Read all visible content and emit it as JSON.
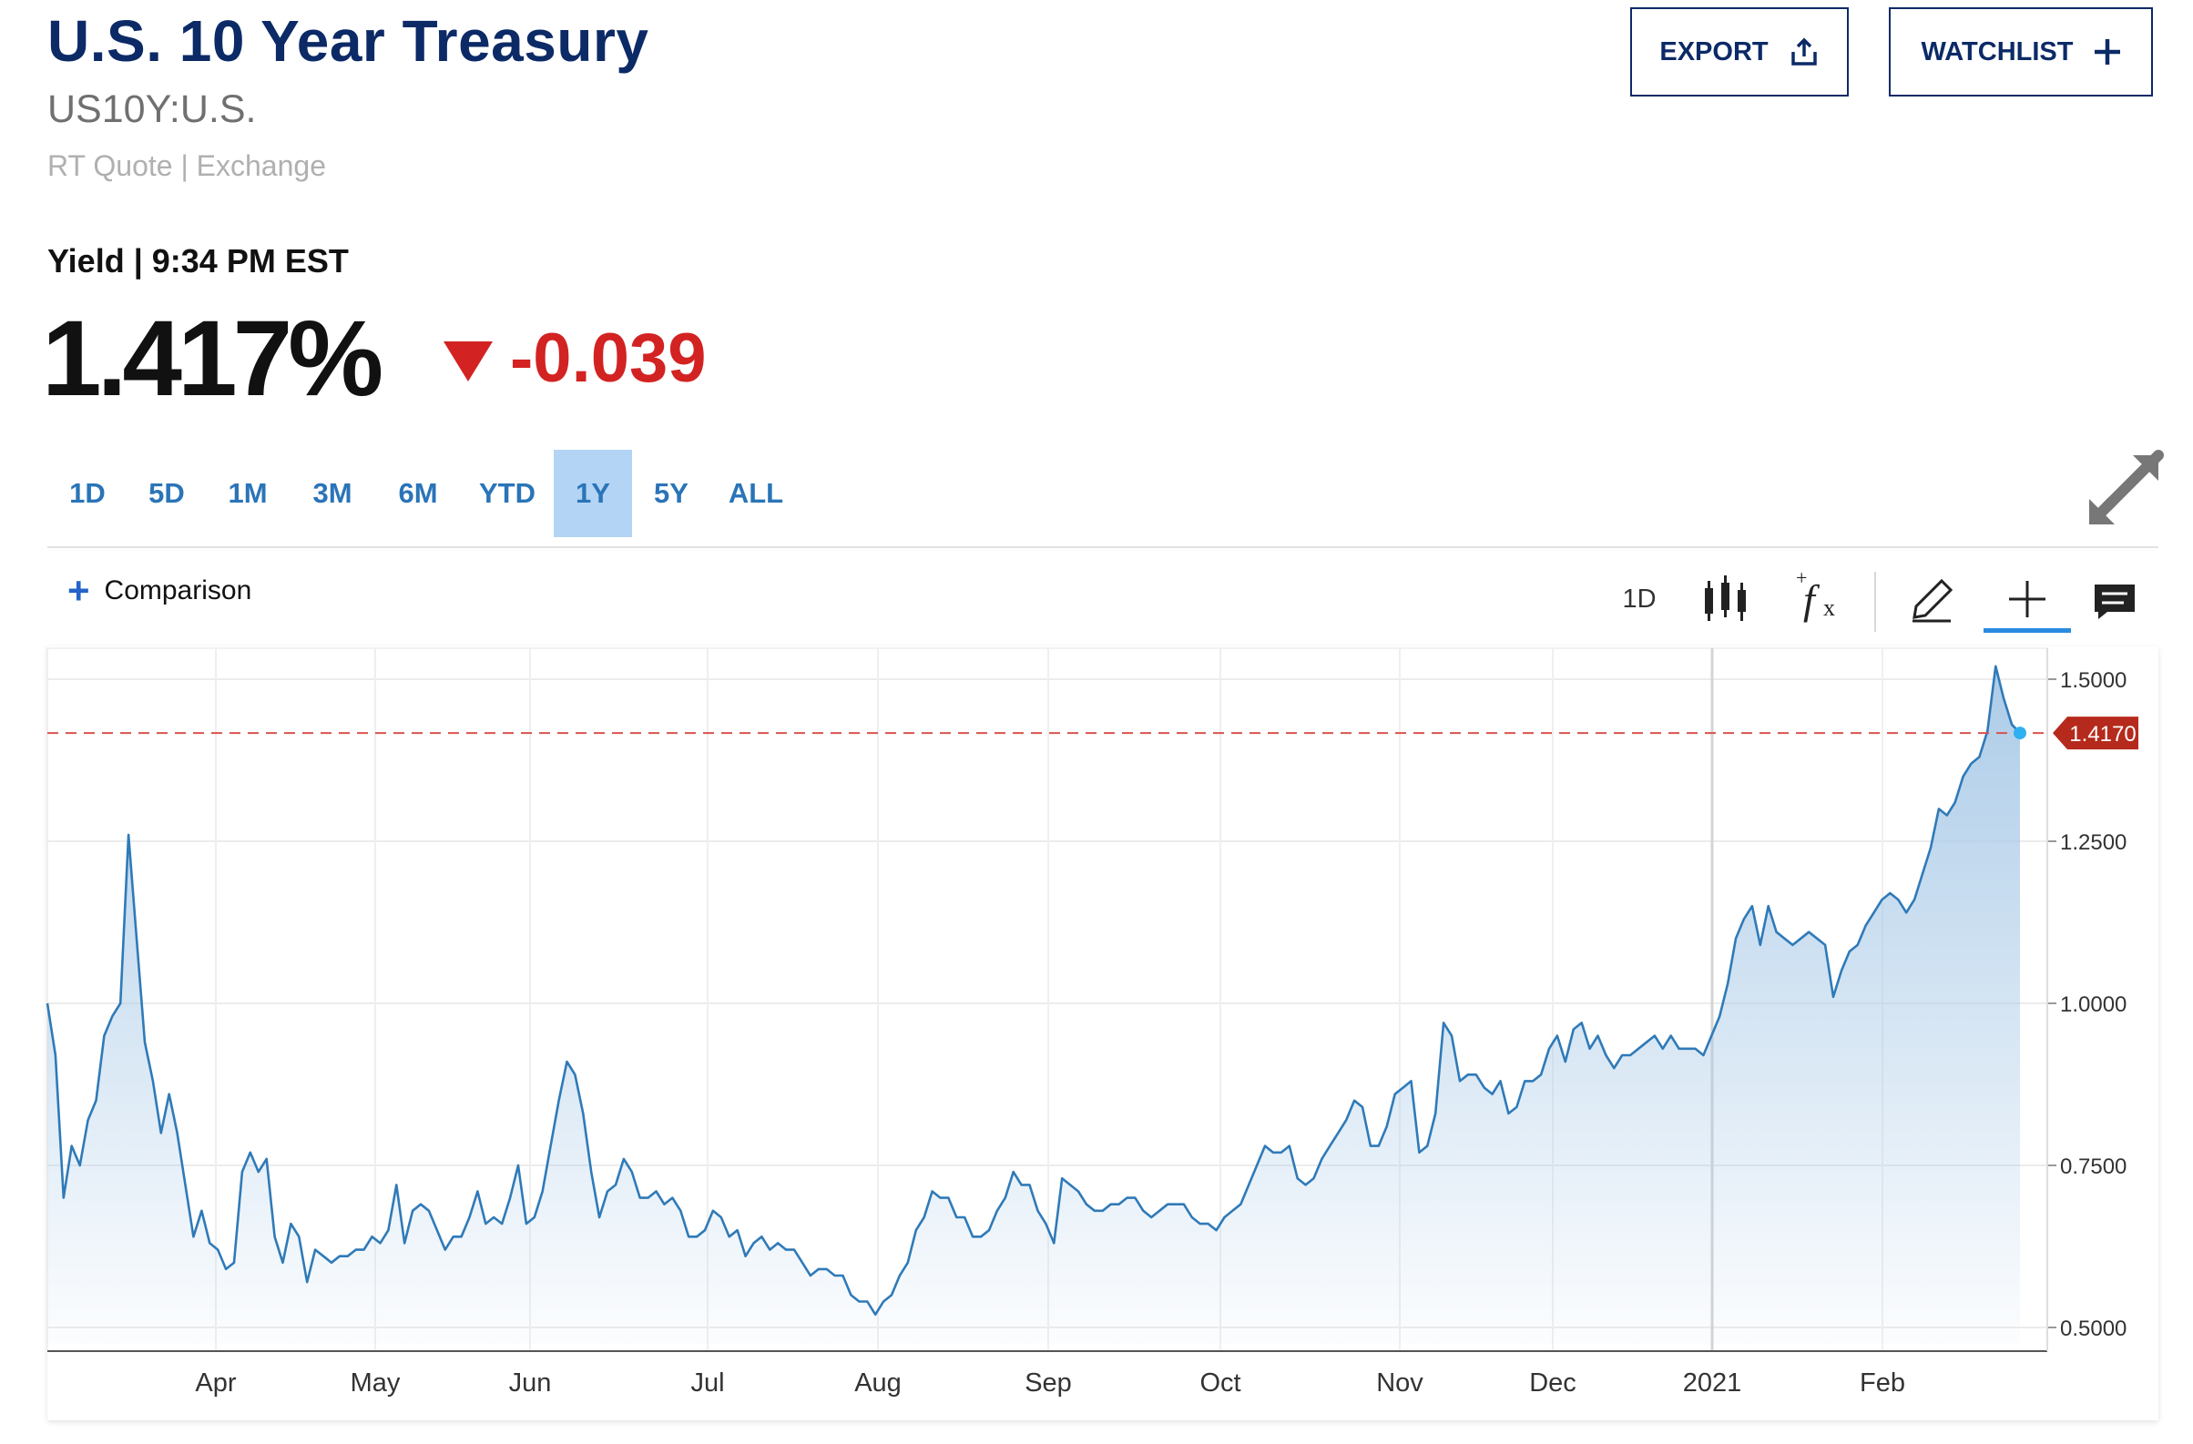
{
  "header": {
    "title": "U.S. 10 Year Treasury",
    "symbol": "US10Y:U.S.",
    "quote_source": "RT Quote | Exchange",
    "export_label": "EXPORT",
    "watchlist_label": "WATCHLIST"
  },
  "quote": {
    "label": "Yield | 9:34 PM EST",
    "price": "1.417%",
    "change": "-0.039",
    "change_color": "#d32222"
  },
  "ranges": {
    "items": [
      "1D",
      "5D",
      "1M",
      "3M",
      "6M",
      "YTD",
      "1Y",
      "5Y",
      "ALL"
    ],
    "active": "1Y"
  },
  "toolbar": {
    "comparison_label": "Comparison",
    "interval_label": "1D",
    "icons": [
      "candlestick-icon",
      "indicator-fx-icon",
      "draw-pencil-icon",
      "crosshair-icon",
      "comment-icon"
    ]
  },
  "chart_data": {
    "type": "area",
    "x_tick_labels": [
      "Apr",
      "May",
      "Jun",
      "Jul",
      "Aug",
      "Sep",
      "Oct",
      "Nov",
      "Dec",
      "2021",
      "Feb"
    ],
    "y_tick_labels": [
      "1.5000",
      "1.2500",
      "1.0000",
      "0.7500",
      "0.5000"
    ],
    "ylim": [
      0.5,
      1.5
    ],
    "current_value": 1.417,
    "current_label": "1.4170",
    "line_color": "#2f7ab8",
    "fill_color": "#a8c9e7",
    "reference_line_color": "#d9534f",
    "grid": true,
    "values": [
      1.0,
      0.92,
      0.7,
      0.78,
      0.75,
      0.82,
      0.85,
      0.95,
      0.98,
      1.0,
      1.26,
      1.1,
      0.94,
      0.88,
      0.8,
      0.86,
      0.8,
      0.72,
      0.64,
      0.68,
      0.63,
      0.62,
      0.59,
      0.6,
      0.74,
      0.77,
      0.74,
      0.76,
      0.64,
      0.6,
      0.66,
      0.64,
      0.57,
      0.62,
      0.61,
      0.6,
      0.61,
      0.61,
      0.62,
      0.62,
      0.64,
      0.63,
      0.65,
      0.72,
      0.63,
      0.68,
      0.69,
      0.68,
      0.65,
      0.62,
      0.64,
      0.64,
      0.67,
      0.71,
      0.66,
      0.67,
      0.66,
      0.7,
      0.75,
      0.66,
      0.67,
      0.71,
      0.78,
      0.85,
      0.91,
      0.89,
      0.83,
      0.74,
      0.67,
      0.71,
      0.72,
      0.76,
      0.74,
      0.7,
      0.7,
      0.71,
      0.69,
      0.7,
      0.68,
      0.64,
      0.64,
      0.65,
      0.68,
      0.67,
      0.64,
      0.65,
      0.61,
      0.63,
      0.64,
      0.62,
      0.63,
      0.62,
      0.62,
      0.6,
      0.58,
      0.59,
      0.59,
      0.58,
      0.58,
      0.55,
      0.54,
      0.54,
      0.52,
      0.54,
      0.55,
      0.58,
      0.6,
      0.65,
      0.67,
      0.71,
      0.7,
      0.7,
      0.67,
      0.67,
      0.64,
      0.64,
      0.65,
      0.68,
      0.7,
      0.74,
      0.72,
      0.72,
      0.68,
      0.66,
      0.63,
      0.73,
      0.72,
      0.71,
      0.69,
      0.68,
      0.68,
      0.69,
      0.69,
      0.7,
      0.7,
      0.68,
      0.67,
      0.68,
      0.69,
      0.69,
      0.69,
      0.67,
      0.66,
      0.66,
      0.65,
      0.67,
      0.68,
      0.69,
      0.72,
      0.75,
      0.78,
      0.77,
      0.77,
      0.78,
      0.73,
      0.72,
      0.73,
      0.76,
      0.78,
      0.8,
      0.82,
      0.85,
      0.84,
      0.78,
      0.78,
      0.81,
      0.86,
      0.87,
      0.88,
      0.77,
      0.78,
      0.83,
      0.97,
      0.95,
      0.88,
      0.89,
      0.89,
      0.87,
      0.86,
      0.88,
      0.83,
      0.84,
      0.88,
      0.88,
      0.89,
      0.93,
      0.95,
      0.91,
      0.96,
      0.97,
      0.93,
      0.95,
      0.92,
      0.9,
      0.92,
      0.92,
      0.93,
      0.94,
      0.95,
      0.93,
      0.95,
      0.93,
      0.93,
      0.93,
      0.92,
      0.95,
      0.98,
      1.03,
      1.1,
      1.13,
      1.15,
      1.09,
      1.15,
      1.11,
      1.1,
      1.09,
      1.1,
      1.11,
      1.1,
      1.09,
      1.01,
      1.05,
      1.08,
      1.09,
      1.12,
      1.14,
      1.16,
      1.17,
      1.16,
      1.14,
      1.16,
      1.2,
      1.24,
      1.3,
      1.29,
      1.31,
      1.35,
      1.37,
      1.38,
      1.42,
      1.52,
      1.47,
      1.43,
      1.417
    ]
  }
}
